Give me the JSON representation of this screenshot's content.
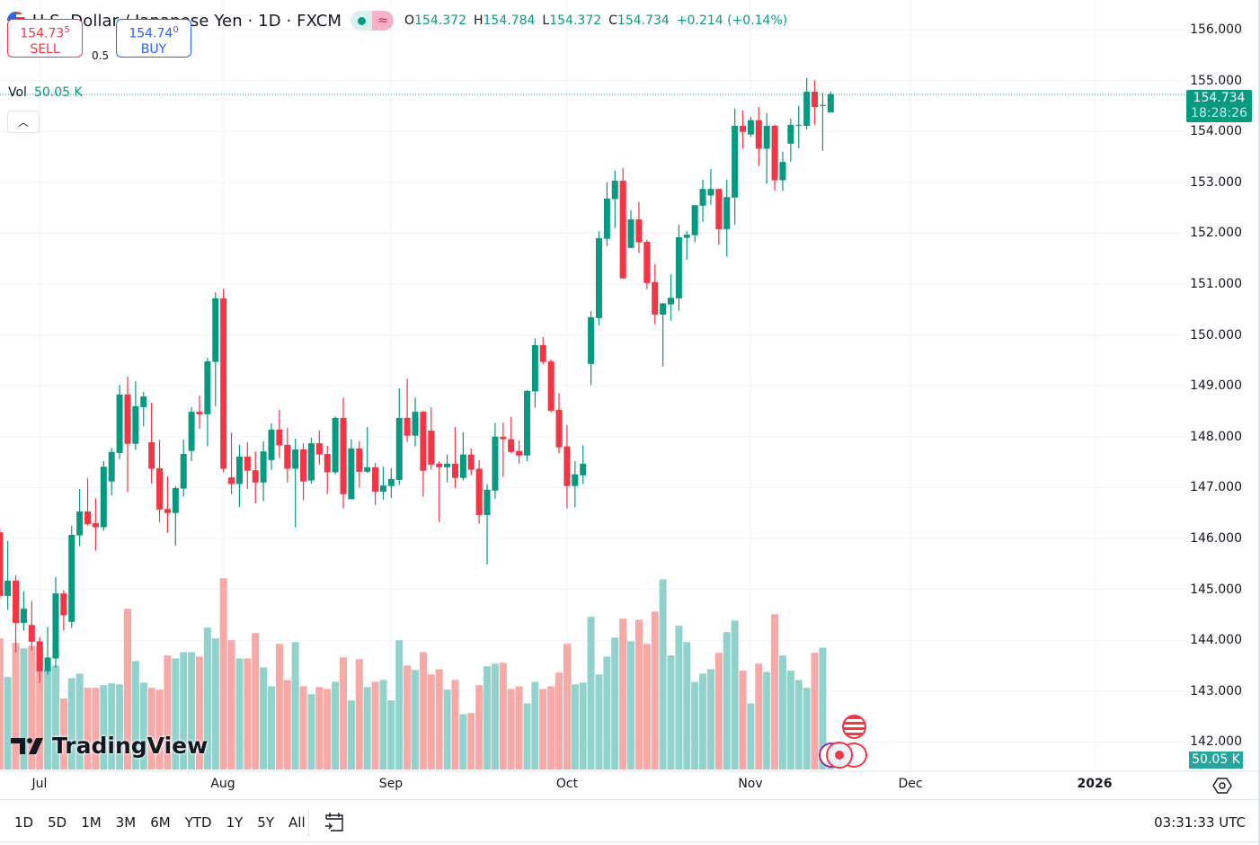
{
  "header": {
    "symbol_title": "U.S. Dollar / Japanese Yen · 1D · FXCM",
    "flag_icon": "us-flag-icon",
    "market_status_icon": "market-open-dot-icon",
    "data_icon": "approx-wave-icon",
    "ohlc": {
      "o_label": "O",
      "o": "154.372",
      "h_label": "H",
      "h": "154.784",
      "l_label": "L",
      "l": "154.372",
      "c_label": "C",
      "c": "154.734",
      "change": "+0.214 (+0.14%)"
    }
  },
  "trade": {
    "sell_price_main": "154.73",
    "sell_price_pip": "5",
    "sell_label": "SELL",
    "spread": "0.5",
    "buy_price_main": "154.74",
    "buy_price_pip": "0",
    "buy_label": "BUY"
  },
  "volume_legend": {
    "label": "Vol",
    "value": "50.05 K"
  },
  "collapse_icon": "chevron-up-icon",
  "price_axis": {
    "labels": [
      "156.000",
      "155.000",
      "154.000",
      "153.000",
      "152.000",
      "151.000",
      "150.000",
      "149.000",
      "148.000",
      "147.000",
      "146.000",
      "145.000",
      "144.000",
      "143.000",
      "142.000"
    ],
    "last_price": "154.734",
    "countdown": "18:28:26",
    "volume_label": "50.05 K"
  },
  "time_axis": {
    "labels": [
      "Jul",
      "Aug",
      "Sep",
      "Oct",
      "Nov",
      "Dec",
      "2026"
    ]
  },
  "settings_icon": "gear-icon",
  "logo_text": "TradingView",
  "bottom_bar": {
    "ranges": [
      "1D",
      "5D",
      "1M",
      "3M",
      "6M",
      "YTD",
      "1Y",
      "5Y",
      "All"
    ],
    "goto_icon": "calendar-goto-icon",
    "clock": "03:31:33 UTC"
  },
  "colors": {
    "up": "#089981",
    "down": "#F23645",
    "vol_up": "#92d2cc",
    "vol_down": "#f7a9a7",
    "grid": "#f0f3fa"
  },
  "chart_data": {
    "type": "candlestick",
    "interval": "1D",
    "ylim": [
      141.6,
      156.4
    ],
    "volume_unit": "K",
    "ohlc": [
      [
        146.12,
        146.2,
        144.8,
        144.87
      ],
      [
        144.87,
        145.95,
        144.6,
        145.17
      ],
      [
        145.17,
        145.28,
        143.76,
        144.34
      ],
      [
        144.34,
        144.96,
        144.19,
        144.62
      ],
      [
        144.3,
        144.77,
        143.8,
        143.97
      ],
      [
        143.98,
        144.06,
        143.16,
        143.39
      ],
      [
        143.39,
        144.26,
        143.32,
        143.66
      ],
      [
        143.64,
        145.24,
        143.46,
        144.92
      ],
      [
        144.92,
        144.98,
        144.19,
        144.49
      ],
      [
        144.36,
        146.25,
        144.24,
        146.07
      ],
      [
        146.06,
        146.97,
        145.85,
        146.53
      ],
      [
        146.53,
        147.18,
        146.25,
        146.28
      ],
      [
        146.3,
        146.79,
        145.76,
        146.22
      ],
      [
        146.22,
        147.52,
        146.15,
        147.41
      ],
      [
        147.12,
        147.78,
        146.85,
        147.7
      ],
      [
        147.68,
        149.02,
        147.56,
        148.83
      ],
      [
        148.83,
        149.18,
        146.91,
        147.86
      ],
      [
        147.86,
        149.09,
        147.74,
        148.6
      ],
      [
        148.58,
        148.88,
        148.2,
        148.79
      ],
      [
        147.89,
        148.67,
        147.08,
        147.37
      ],
      [
        147.38,
        147.94,
        146.32,
        146.57
      ],
      [
        146.58,
        147.22,
        146.11,
        146.5
      ],
      [
        146.5,
        147.03,
        145.86,
        146.99
      ],
      [
        146.98,
        147.94,
        146.82,
        147.66
      ],
      [
        147.72,
        148.58,
        147.52,
        148.49
      ],
      [
        148.49,
        148.81,
        148.16,
        148.44
      ],
      [
        148.44,
        149.55,
        147.81,
        149.48
      ],
      [
        149.47,
        150.84,
        148.6,
        150.72
      ],
      [
        150.72,
        150.91,
        147.3,
        147.37
      ],
      [
        147.2,
        148.08,
        146.87,
        147.07
      ],
      [
        147.07,
        147.84,
        146.62,
        147.61
      ],
      [
        147.61,
        147.89,
        146.98,
        147.33
      ],
      [
        147.34,
        147.71,
        146.69,
        147.1
      ],
      [
        147.1,
        147.91,
        146.73,
        147.71
      ],
      [
        147.54,
        148.26,
        147.35,
        148.14
      ],
      [
        148.14,
        148.53,
        147.58,
        147.83
      ],
      [
        147.84,
        148.17,
        147.1,
        147.37
      ],
      [
        147.37,
        147.96,
        146.22,
        147.75
      ],
      [
        147.75,
        147.87,
        146.75,
        147.12
      ],
      [
        147.14,
        147.98,
        147.08,
        147.87
      ],
      [
        147.87,
        148.12,
        147.45,
        147.65
      ],
      [
        147.66,
        147.82,
        146.87,
        147.3
      ],
      [
        147.3,
        148.4,
        147.26,
        148.37
      ],
      [
        148.37,
        148.77,
        146.59,
        146.87
      ],
      [
        146.77,
        147.95,
        146.77,
        147.77
      ],
      [
        147.77,
        147.91,
        147.0,
        147.31
      ],
      [
        147.31,
        148.19,
        147.29,
        147.4
      ],
      [
        147.4,
        147.48,
        146.66,
        146.92
      ],
      [
        146.92,
        147.41,
        146.76,
        147.04
      ],
      [
        147.03,
        147.38,
        146.8,
        147.17
      ],
      [
        147.15,
        148.95,
        147.05,
        148.37
      ],
      [
        148.37,
        149.14,
        147.9,
        148.02
      ],
      [
        148.02,
        148.77,
        147.81,
        148.49
      ],
      [
        148.49,
        148.51,
        146.82,
        147.33
      ],
      [
        148.12,
        148.58,
        147.35,
        147.45
      ],
      [
        147.47,
        147.52,
        146.32,
        147.4
      ],
      [
        147.4,
        147.65,
        147.1,
        147.47
      ],
      [
        147.47,
        148.19,
        146.99,
        147.19
      ],
      [
        147.19,
        148.09,
        147.14,
        147.65
      ],
      [
        147.65,
        147.77,
        147.24,
        147.35
      ],
      [
        147.37,
        147.54,
        146.29,
        146.46
      ],
      [
        146.46,
        147.07,
        145.49,
        146.96
      ],
      [
        146.94,
        148.27,
        146.78,
        148.0
      ],
      [
        148.0,
        148.28,
        147.21,
        147.95
      ],
      [
        147.95,
        148.39,
        147.67,
        147.7
      ],
      [
        147.72,
        147.93,
        147.47,
        147.63
      ],
      [
        147.63,
        148.92,
        147.52,
        148.9
      ],
      [
        148.89,
        149.93,
        148.57,
        149.8
      ],
      [
        149.8,
        149.96,
        149.42,
        149.47
      ],
      [
        149.48,
        149.52,
        148.48,
        148.51
      ],
      [
        148.53,
        148.85,
        147.67,
        147.79
      ],
      [
        147.81,
        148.23,
        146.59,
        147.03
      ],
      [
        147.03,
        147.52,
        146.61,
        147.26
      ],
      [
        147.24,
        147.83,
        147.07,
        147.47
      ],
      [
        149.43,
        150.47,
        149.01,
        150.35
      ],
      [
        150.33,
        152.04,
        150.19,
        151.9
      ],
      [
        151.89,
        153.0,
        151.75,
        152.68
      ],
      [
        152.67,
        153.23,
        152.1,
        153.03
      ],
      [
        153.03,
        153.28,
        151.11,
        151.11
      ],
      [
        151.71,
        152.45,
        151.71,
        152.27
      ],
      [
        152.27,
        152.61,
        151.61,
        151.82
      ],
      [
        151.83,
        151.87,
        150.9,
        151.02
      ],
      [
        151.04,
        151.39,
        150.21,
        150.4
      ],
      [
        150.4,
        150.63,
        149.38,
        150.62
      ],
      [
        150.6,
        151.19,
        150.28,
        150.73
      ],
      [
        150.72,
        152.17,
        150.48,
        151.92
      ],
      [
        151.91,
        152.04,
        151.48,
        151.97
      ],
      [
        151.96,
        152.55,
        151.82,
        152.55
      ],
      [
        152.54,
        153.05,
        152.22,
        152.87
      ],
      [
        152.74,
        153.26,
        152.56,
        152.87
      ],
      [
        152.87,
        152.87,
        151.77,
        152.08
      ],
      [
        152.08,
        153.05,
        151.54,
        152.71
      ],
      [
        152.7,
        154.45,
        152.17,
        154.11
      ],
      [
        154.11,
        154.41,
        153.66,
        153.99
      ],
      [
        153.94,
        154.29,
        153.89,
        154.22
      ],
      [
        154.22,
        154.48,
        153.32,
        153.66
      ],
      [
        153.66,
        154.36,
        152.97,
        154.11
      ],
      [
        154.11,
        154.13,
        152.83,
        153.04
      ],
      [
        153.04,
        153.6,
        152.83,
        153.4
      ],
      [
        153.76,
        154.25,
        153.41,
        154.13
      ],
      [
        154.12,
        154.5,
        153.67,
        154.13
      ],
      [
        154.11,
        155.05,
        154.04,
        154.78
      ],
      [
        154.78,
        155.01,
        154.13,
        154.48
      ],
      [
        154.5,
        154.76,
        153.62,
        154.52
      ],
      [
        154.372,
        154.784,
        154.372,
        154.734
      ]
    ],
    "volume": [
      353,
      249,
      341,
      326,
      333,
      331,
      270,
      280,
      191,
      246,
      258,
      220,
      220,
      227,
      232,
      229,
      433,
      292,
      234,
      220,
      215,
      307,
      299,
      316,
      316,
      304,
      382,
      353,
      515,
      348,
      299,
      299,
      367,
      275,
      224,
      338,
      241,
      343,
      224,
      203,
      222,
      217,
      236,
      302,
      186,
      297,
      222,
      236,
      241,
      186,
      348,
      280,
      268,
      316,
      256,
      270,
      215,
      241,
      149,
      152,
      227,
      278,
      285,
      287,
      217,
      224,
      178,
      236,
      217,
      224,
      261,
      338,
      229,
      234,
      411,
      256,
      304,
      355,
      406,
      345,
      403,
      338,
      425,
      512,
      307,
      387,
      343,
      236,
      258,
      270,
      314,
      370,
      401,
      266,
      178,
      285,
      263,
      418,
      307,
      266,
      241,
      220,
      314,
      328,
      50.05
    ]
  }
}
